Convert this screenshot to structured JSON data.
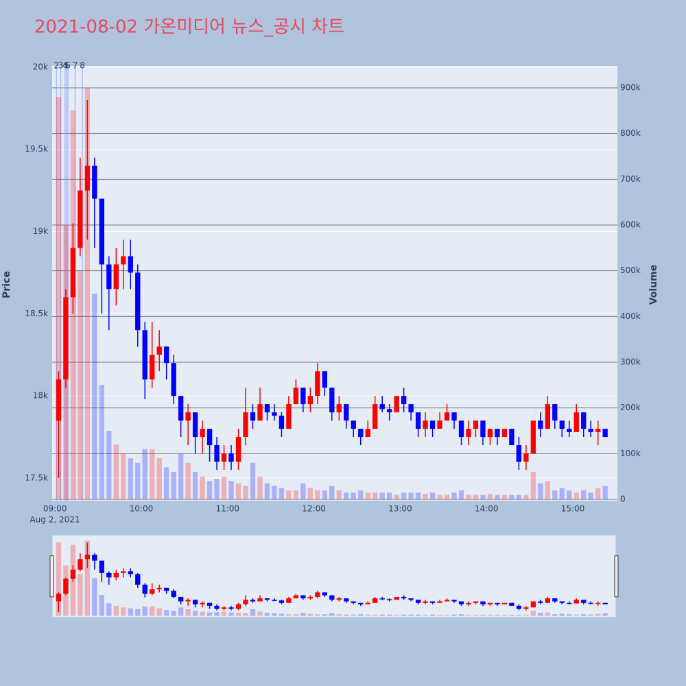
{
  "chart_data": {
    "type": "candlestick",
    "title": "2021-08-02 가온미디어 뉴스_공시 차트",
    "y_label": "Price",
    "y2_label": "Volume",
    "x_date_label": "Aug 2, 2021",
    "increasing_color": "#ff0000",
    "decreasing_color": "#0000ff",
    "grid": true,
    "x": [
      "09:00",
      "09:05",
      "09:10",
      "09:15",
      "09:20",
      "09:25",
      "09:30",
      "09:35",
      "09:40",
      "09:45",
      "09:50",
      "09:55",
      "10:00",
      "10:05",
      "10:10",
      "10:15",
      "10:20",
      "10:25",
      "10:30",
      "10:35",
      "10:40",
      "10:45",
      "10:50",
      "10:55",
      "11:00",
      "11:05",
      "11:10",
      "11:15",
      "11:20",
      "11:25",
      "11:30",
      "11:35",
      "11:40",
      "11:45",
      "11:50",
      "11:55",
      "12:00",
      "12:05",
      "12:10",
      "12:15",
      "12:20",
      "12:25",
      "12:30",
      "12:35",
      "12:40",
      "12:45",
      "12:50",
      "12:55",
      "13:00",
      "13:05",
      "13:10",
      "13:15",
      "13:20",
      "13:25",
      "13:30",
      "13:35",
      "13:40",
      "13:45",
      "13:50",
      "13:55",
      "14:00",
      "14:05",
      "14:10",
      "14:15",
      "14:20",
      "14:25",
      "14:30",
      "14:35",
      "14:40",
      "14:45",
      "14:50",
      "14:55",
      "15:00",
      "15:05",
      "15:10",
      "15:15",
      "15:20"
    ],
    "open": [
      17850,
      18100,
      18600,
      18900,
      19250,
      19400,
      19200,
      18800,
      18650,
      18800,
      18850,
      18750,
      18400,
      18100,
      18250,
      18300,
      18200,
      18000,
      17850,
      17900,
      17750,
      17800,
      17700,
      17600,
      17650,
      17600,
      17750,
      17900,
      17850,
      17950,
      17900,
      17880,
      17800,
      17950,
      18050,
      17950,
      18000,
      18150,
      18050,
      17900,
      17950,
      17850,
      17800,
      17750,
      17800,
      17950,
      17920,
      17900,
      18000,
      17950,
      17900,
      17800,
      17850,
      17800,
      17850,
      17900,
      17850,
      17750,
      17800,
      17850,
      17750,
      17800,
      17750,
      17800,
      17700,
      17600,
      17650,
      17850,
      17800,
      17950,
      17850,
      17800,
      17780,
      17900,
      17800,
      17780,
      17800
    ],
    "high": [
      18150,
      18650,
      19050,
      19450,
      19800,
      19450,
      19200,
      18850,
      18900,
      18950,
      18950,
      18800,
      18450,
      18450,
      18400,
      18300,
      18250,
      18000,
      17950,
      17900,
      17850,
      17800,
      17750,
      17700,
      17700,
      17800,
      18050,
      17950,
      18050,
      17950,
      17950,
      17900,
      18000,
      18100,
      18050,
      18050,
      18200,
      18150,
      18050,
      18000,
      17950,
      17850,
      17800,
      17850,
      18000,
      18000,
      17950,
      18000,
      18050,
      17950,
      17900,
      17900,
      17850,
      17900,
      17950,
      17900,
      17850,
      17850,
      17850,
      17850,
      17800,
      17800,
      17800,
      17800,
      17750,
      17700,
      17850,
      17900,
      18000,
      17950,
      17850,
      17850,
      17950,
      17900,
      17850,
      17850,
      17800
    ],
    "low": [
      17500,
      18050,
      18500,
      18850,
      18950,
      18900,
      18500,
      18400,
      18550,
      18650,
      18650,
      18300,
      17980,
      18050,
      18150,
      18100,
      17950,
      17750,
      17700,
      17650,
      17650,
      17600,
      17550,
      17550,
      17550,
      17550,
      17700,
      17800,
      17850,
      17850,
      17850,
      17750,
      17800,
      17950,
      17900,
      17900,
      17950,
      18000,
      17850,
      17850,
      17800,
      17750,
      17700,
      17750,
      17800,
      17900,
      17850,
      17900,
      17900,
      17850,
      17750,
      17750,
      17750,
      17800,
      17850,
      17800,
      17700,
      17700,
      17750,
      17700,
      17700,
      17700,
      17750,
      17700,
      17550,
      17550,
      17650,
      17750,
      17800,
      17800,
      17750,
      17750,
      17780,
      17750,
      17750,
      17700,
      17750
    ],
    "close": [
      18100,
      18600,
      18900,
      19250,
      19400,
      19200,
      18800,
      18650,
      18800,
      18850,
      18750,
      18400,
      18100,
      18250,
      18300,
      18200,
      18000,
      17850,
      17900,
      17750,
      17800,
      17700,
      17600,
      17650,
      17600,
      17750,
      17900,
      17850,
      17950,
      17900,
      17880,
      17800,
      17950,
      18050,
      17950,
      18000,
      18150,
      18050,
      17900,
      17950,
      17850,
      17800,
      17750,
      17800,
      17950,
      17920,
      17900,
      18000,
      17950,
      17900,
      17800,
      17850,
      17800,
      17850,
      17900,
      17850,
      17750,
      17800,
      17850,
      17750,
      17800,
      17750,
      17800,
      17700,
      17600,
      17650,
      17850,
      17800,
      17950,
      17850,
      17800,
      17780,
      17900,
      17800,
      17780,
      17800,
      17750
    ],
    "volume": [
      880000,
      600000,
      850000,
      500000,
      900000,
      450000,
      250000,
      150000,
      120000,
      100000,
      90000,
      80000,
      110000,
      110000,
      90000,
      70000,
      60000,
      100000,
      80000,
      60000,
      50000,
      40000,
      45000,
      50000,
      40000,
      35000,
      30000,
      80000,
      50000,
      35000,
      30000,
      25000,
      20000,
      20000,
      35000,
      25000,
      20000,
      20000,
      30000,
      20000,
      15000,
      15000,
      20000,
      15000,
      15000,
      15000,
      15000,
      10000,
      15000,
      15000,
      15000,
      12000,
      15000,
      10000,
      10000,
      15000,
      20000,
      10000,
      10000,
      10000,
      12000,
      10000,
      10000,
      10000,
      10000,
      10000,
      60000,
      35000,
      40000,
      20000,
      25000,
      20000,
      15000,
      20000,
      15000,
      25000,
      30000
    ],
    "xlim": [
      "08:58",
      "15:31"
    ],
    "xticks": [
      "09:00",
      "10:00",
      "11:00",
      "12:00",
      "13:00",
      "14:00",
      "15:00"
    ],
    "ylim": [
      17362,
      20008
    ],
    "yticks": [
      {
        "value": 17500,
        "label": "17.5k"
      },
      {
        "value": 18000,
        "label": "18k"
      },
      {
        "value": 18500,
        "label": "18.5k"
      },
      {
        "value": 19000,
        "label": "19k"
      },
      {
        "value": 19500,
        "label": "19.5k"
      },
      {
        "value": 20000,
        "label": "20k"
      }
    ],
    "y2lim": [
      -3000,
      948000
    ],
    "y2ticks": [
      0,
      {
        "value": 100000,
        "label": "100k"
      },
      {
        "value": 200000,
        "label": "200k"
      },
      {
        "value": 300000,
        "label": "300k"
      },
      {
        "value": 400000,
        "label": "400k"
      },
      {
        "value": 500000,
        "label": "500k"
      },
      {
        "value": 600000,
        "label": "600k"
      },
      {
        "value": 700000,
        "label": "700k"
      },
      {
        "value": 800000,
        "label": "800k"
      },
      {
        "value": 900000,
        "label": "900k"
      }
    ],
    "annotations": [
      {
        "x": "09:01",
        "text": "2"
      },
      {
        "x": "09:04",
        "text": "3"
      },
      {
        "x": "09:07",
        "text": "4"
      },
      {
        "x": "09:08",
        "text": "5"
      },
      {
        "x": "09:09",
        "text": "6"
      },
      {
        "x": "09:14",
        "text": "7"
      },
      {
        "x": "09:19",
        "text": "8"
      }
    ]
  }
}
